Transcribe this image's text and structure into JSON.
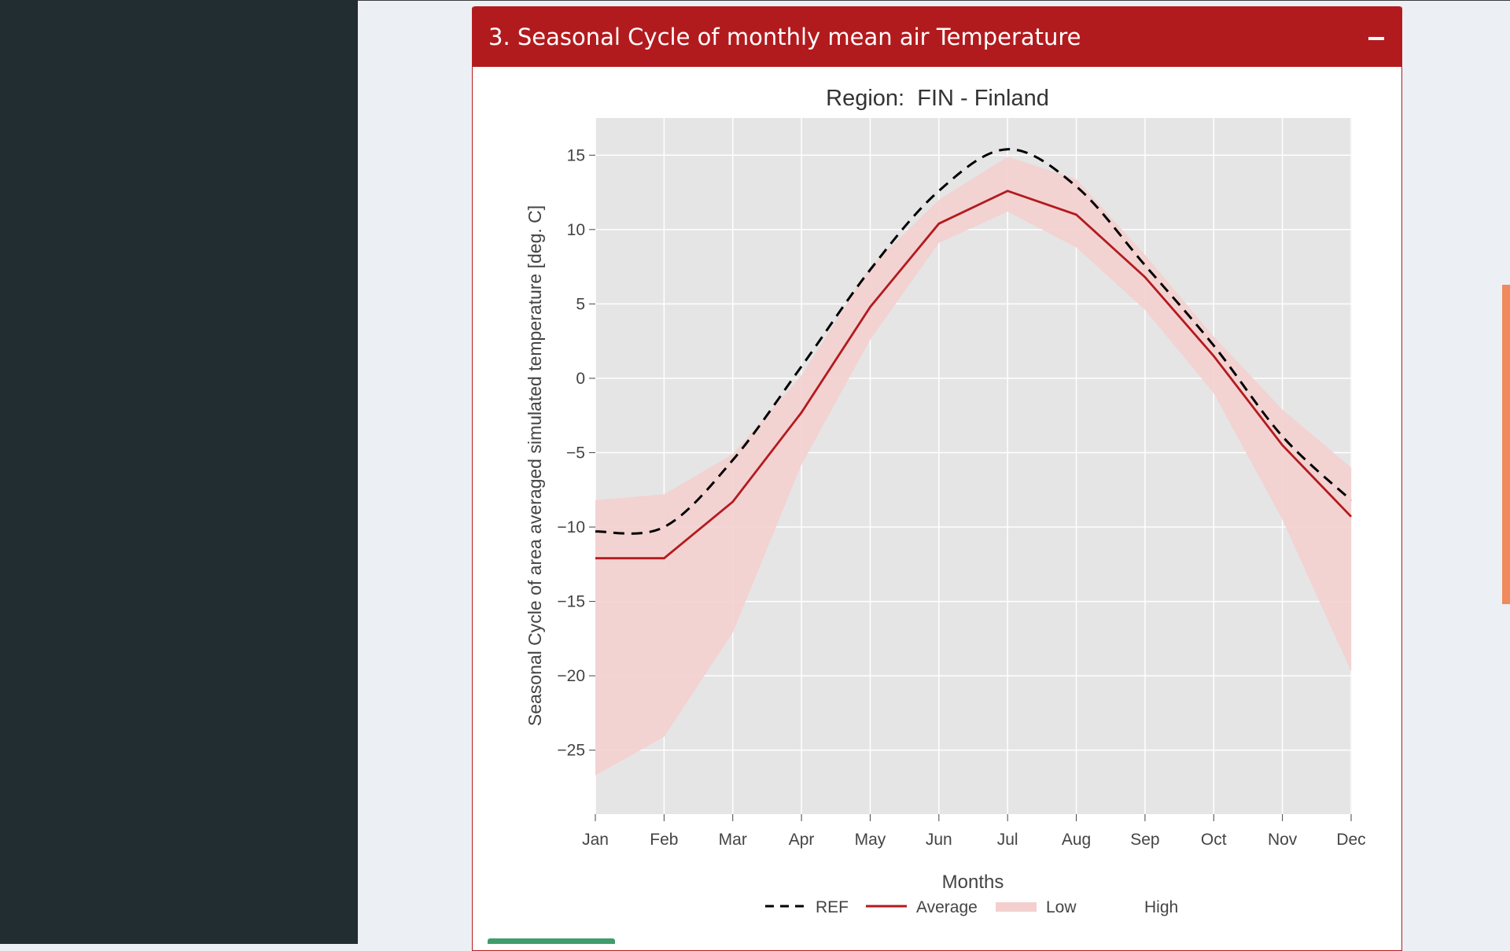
{
  "panel": {
    "title": "3. Seasonal Cycle of monthly mean air Temperature",
    "collapse_symbol": "−"
  },
  "colors": {
    "header": "#b21b1e",
    "average": "#b21b1e",
    "ref": "#000000",
    "band": "#f4cfcf",
    "plot_bg": "#e5e5e5"
  },
  "chart_data": {
    "type": "line",
    "title": "Region:  FIN - Finland",
    "xlabel": "Months",
    "ylabel": "Seasonal Cycle of area averaged simulated temperature [deg. C]",
    "categories": [
      "Jan",
      "Feb",
      "Mar",
      "Apr",
      "May",
      "Jun",
      "Jul",
      "Aug",
      "Sep",
      "Oct",
      "Nov",
      "Dec"
    ],
    "ylim": [
      -29.3,
      17.5
    ],
    "yticks": [
      15,
      10,
      5,
      0,
      -5,
      -10,
      -15,
      -20,
      -25
    ],
    "ytick_labels": [
      "15",
      "10",
      "5",
      "0",
      "−5",
      "−10",
      "−15",
      "−20",
      "−25"
    ],
    "grid": true,
    "legend_position": "bottom",
    "series": [
      {
        "name": "REF",
        "style": "dashed",
        "values": [
          -10.3,
          -10.0,
          -5.5,
          0.8,
          7.3,
          12.6,
          15.4,
          12.9,
          7.6,
          2.2,
          -3.9,
          -8.2
        ]
      },
      {
        "name": "Average",
        "style": "solid",
        "values": [
          -12.1,
          -12.1,
          -8.3,
          -2.3,
          4.8,
          10.4,
          12.6,
          11.0,
          6.8,
          1.5,
          -4.5,
          -9.3
        ]
      },
      {
        "name": "Low",
        "style": "band-lower",
        "values": [
          -26.7,
          -24.1,
          -17.1,
          -5.8,
          2.6,
          9.1,
          11.2,
          8.8,
          4.6,
          -1.0,
          -9.5,
          -19.7
        ]
      },
      {
        "name": "High",
        "style": "band-upper",
        "values": [
          -8.2,
          -7.8,
          -5.1,
          0.2,
          7.5,
          12.0,
          14.9,
          13.4,
          8.3,
          2.8,
          -2.1,
          -6.0
        ]
      }
    ]
  }
}
